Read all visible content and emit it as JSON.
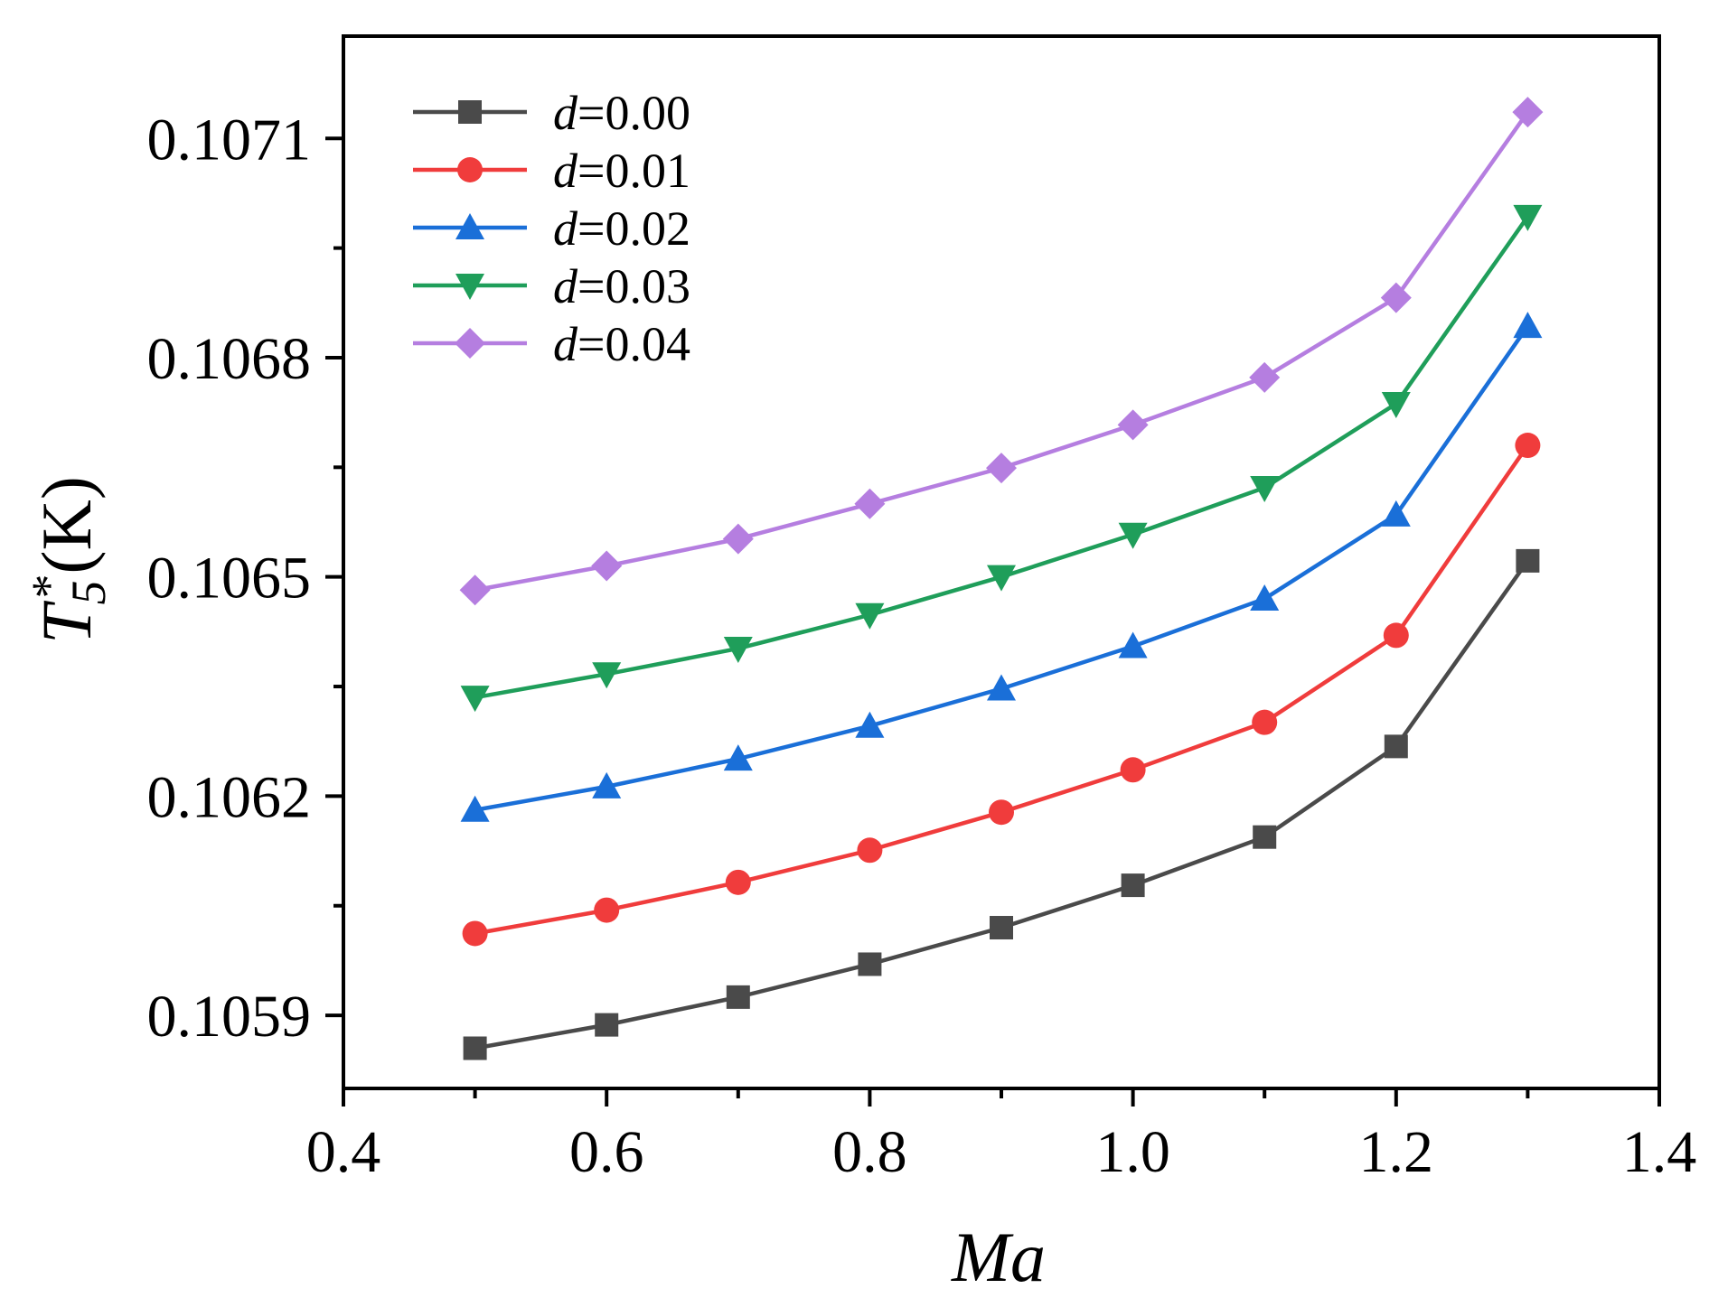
{
  "chart_data": {
    "type": "line",
    "title": "",
    "xlabel": "Ma",
    "ylabel": {
      "main": "T",
      "subscript": "5",
      "superscript": "*",
      "unit": "(K)"
    },
    "xlim": [
      0.4,
      1.4
    ],
    "ylim": [
      0.1058,
      0.10724
    ],
    "x_ticks": [
      0.4,
      0.6,
      0.8,
      1.0,
      1.2,
      1.4
    ],
    "x_tick_labels": [
      "0.4",
      "0.6",
      "0.8",
      "1.0",
      "1.2",
      "1.4"
    ],
    "x_minor_ticks": [
      0.5,
      0.7,
      0.9,
      1.1,
      1.3
    ],
    "y_ticks": [
      0.1059,
      0.1062,
      0.1065,
      0.1068,
      0.1071
    ],
    "y_tick_labels": [
      "0.1059",
      "0.1062",
      "0.1065",
      "0.1068",
      "0.1071"
    ],
    "y_minor_ticks": [
      0.10605,
      0.10635,
      0.10665,
      0.10695
    ],
    "grid": false,
    "legend_position": "top-left",
    "x": [
      0.5,
      0.6,
      0.7,
      0.8,
      0.9,
      1.0,
      1.1,
      1.2,
      1.3
    ],
    "series": [
      {
        "name_prefix": "d",
        "name_value": "=0.00",
        "color": "#4a4a4a",
        "marker": "square",
        "values": [
          0.105855,
          0.105887,
          0.105925,
          0.10597,
          0.10602,
          0.106078,
          0.106144,
          0.106268,
          0.106522
        ]
      },
      {
        "name_prefix": "d",
        "name_value": "=0.01",
        "color": "#f03c3c",
        "marker": "circle",
        "values": [
          0.106012,
          0.106044,
          0.106082,
          0.106126,
          0.106178,
          0.106236,
          0.106301,
          0.10642,
          0.10668
        ]
      },
      {
        "name_prefix": "d",
        "name_value": "=0.02",
        "color": "#1a6fd8",
        "marker": "triangle-up",
        "values": [
          0.106181,
          0.106213,
          0.106251,
          0.106296,
          0.106347,
          0.106405,
          0.10647,
          0.106585,
          0.106843
        ]
      },
      {
        "name_prefix": "d",
        "name_value": "=0.03",
        "color": "#1f9e5a",
        "marker": "triangle-down",
        "values": [
          0.106335,
          0.106367,
          0.106402,
          0.106448,
          0.1065,
          0.106558,
          0.106622,
          0.106737,
          0.106993
        ]
      },
      {
        "name_prefix": "d",
        "name_value": "=0.04",
        "color": "#b57ee0",
        "marker": "diamond",
        "values": [
          0.106482,
          0.106515,
          0.106552,
          0.1066,
          0.106649,
          0.106708,
          0.106773,
          0.106882,
          0.107136
        ]
      }
    ]
  }
}
